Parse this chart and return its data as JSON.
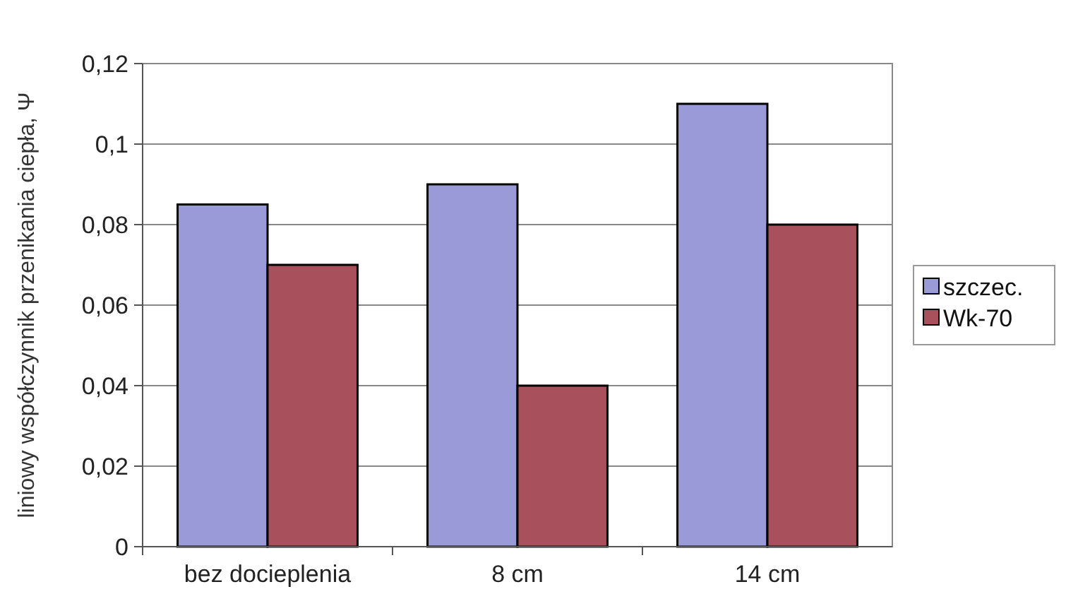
{
  "chart_data": {
    "type": "bar",
    "ylabel": "liniowy współczynnik przenikania ciepła, Ψ",
    "categories": [
      "bez docieplenia",
      "8 cm",
      "14 cm"
    ],
    "series": [
      {
        "name": "szczec.",
        "color": "#9a9ad8",
        "values": [
          0.085,
          0.09,
          0.11
        ]
      },
      {
        "name": "Wk-70",
        "color": "#a8505c",
        "values": [
          0.07,
          0.04,
          0.08
        ]
      }
    ],
    "ylim": [
      0,
      0.12
    ],
    "yticks": [
      0,
      {
        "value": 0.02,
        "label": "0,02"
      },
      {
        "value": 0.04,
        "label": "0,04"
      },
      {
        "value": 0.06,
        "label": "0,06"
      },
      {
        "value": 0.08,
        "label": "0,08"
      },
      {
        "value": 0.1,
        "label": "0,1"
      },
      {
        "value": 0.12,
        "label": "0,12"
      }
    ],
    "grid": "y",
    "legend": "right"
  }
}
